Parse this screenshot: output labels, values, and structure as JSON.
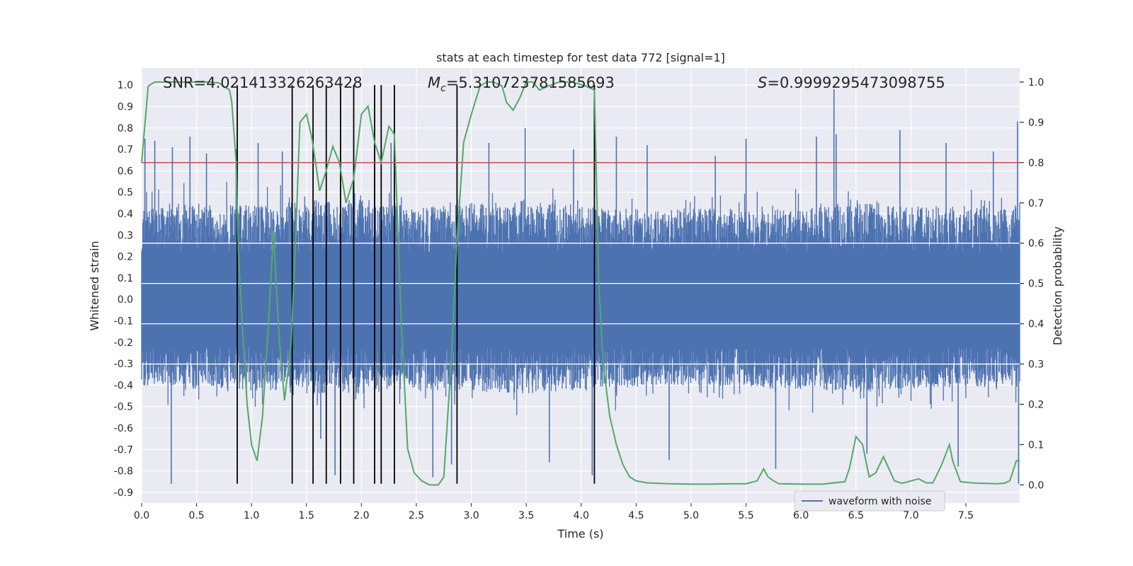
{
  "chart_data": {
    "type": "line",
    "title": "stats at each timestep for test data 772 [signal=1]",
    "xlabel": "Time (s)",
    "ylabel_left": "Whitened strain",
    "ylabel_right": "Detection probability",
    "xlim": [
      0.0,
      7.99
    ],
    "ylim_left": [
      -0.95,
      1.08
    ],
    "ylim_right": [
      -0.045,
      1.035
    ],
    "x_ticks": [
      "0.0",
      "0.5",
      "1.0",
      "1.5",
      "2.0",
      "2.5",
      "3.0",
      "3.5",
      "4.0",
      "4.5",
      "5.0",
      "5.5",
      "6.0",
      "6.5",
      "7.0",
      "7.5"
    ],
    "y_ticks_left": [
      "1.0",
      "0.9",
      "0.8",
      "0.7",
      "0.6",
      "0.5",
      "0.4",
      "0.3",
      "0.2",
      "0.1",
      "0.0",
      "-0.1",
      "-0.2",
      "-0.3",
      "-0.4",
      "-0.5",
      "-0.6",
      "-0.7",
      "-0.8",
      "-0.9"
    ],
    "y_ticks_right": [
      "1.0",
      "0.9",
      "0.8",
      "0.7",
      "0.6",
      "0.5",
      "0.4",
      "0.3",
      "0.2",
      "0.1",
      "0.0"
    ],
    "annotations": {
      "snr": "SNR=4.021413326263428",
      "mc_symbol": "M",
      "mc_sub": "c",
      "mc_value": "=5.310723781585693",
      "s_symbol": "S",
      "s_value": "=0.9999295473098755"
    },
    "legend": {
      "entries": [
        "waveform with noise"
      ],
      "placement": "lower-right"
    },
    "grid": true,
    "colors": {
      "background": "#eaeaf2",
      "grid": "#ffffff",
      "waveform": "#4c72b0",
      "probability": "#55a868",
      "threshold": "#c44e52",
      "markers": "#000000"
    },
    "threshold_probability": 0.8,
    "event_markers_x": [
      0.87,
      1.37,
      1.56,
      1.68,
      1.81,
      1.93,
      2.12,
      2.18,
      2.3,
      2.87,
      4.12
    ],
    "event_markers_ymin": -0.86,
    "event_markers_ymax": 1.0,
    "waveform_envelope": {
      "x": [
        0.0,
        0.5,
        1.0,
        1.5,
        2.0,
        2.5,
        3.0,
        3.5,
        4.0,
        4.5,
        5.0,
        5.5,
        6.0,
        6.5,
        7.0,
        7.5,
        7.99
      ],
      "upper": [
        0.42,
        0.45,
        0.44,
        0.46,
        0.47,
        0.44,
        0.45,
        0.46,
        0.44,
        0.42,
        0.43,
        0.42,
        0.43,
        0.45,
        0.44,
        0.43,
        0.44
      ],
      "lower": [
        -0.4,
        -0.42,
        -0.43,
        -0.44,
        -0.45,
        -0.42,
        -0.43,
        -0.44,
        -0.42,
        -0.41,
        -0.4,
        -0.41,
        -0.42,
        -0.43,
        -0.42,
        -0.41,
        -0.42
      ]
    },
    "waveform_spikes": [
      {
        "x": 0.03,
        "y": 0.75
      },
      {
        "x": 0.12,
        "y": 0.74
      },
      {
        "x": 0.27,
        "y": -0.86
      },
      {
        "x": 0.28,
        "y": 0.71
      },
      {
        "x": 0.44,
        "y": 0.76
      },
      {
        "x": 0.59,
        "y": 0.68
      },
      {
        "x": 0.86,
        "y": 0.7
      },
      {
        "x": 1.06,
        "y": 0.73
      },
      {
        "x": 1.28,
        "y": 0.69
      },
      {
        "x": 1.63,
        "y": -0.65
      },
      {
        "x": 1.76,
        "y": -0.82
      },
      {
        "x": 2.12,
        "y": 0.76
      },
      {
        "x": 2.27,
        "y": 0.73
      },
      {
        "x": 2.65,
        "y": -0.83
      },
      {
        "x": 2.82,
        "y": -0.77
      },
      {
        "x": 3.16,
        "y": 0.73
      },
      {
        "x": 3.49,
        "y": 0.8
      },
      {
        "x": 3.71,
        "y": -0.76
      },
      {
        "x": 3.93,
        "y": 0.7
      },
      {
        "x": 4.1,
        "y": -0.82
      },
      {
        "x": 4.32,
        "y": 0.76
      },
      {
        "x": 4.6,
        "y": 0.72
      },
      {
        "x": 4.8,
        "y": -0.75
      },
      {
        "x": 5.22,
        "y": 0.67
      },
      {
        "x": 5.5,
        "y": 0.75
      },
      {
        "x": 5.77,
        "y": -0.79
      },
      {
        "x": 6.14,
        "y": 0.76
      },
      {
        "x": 6.3,
        "y": 0.98
      },
      {
        "x": 6.32,
        "y": 0.77
      },
      {
        "x": 6.6,
        "y": -0.72
      },
      {
        "x": 6.9,
        "y": 0.79
      },
      {
        "x": 7.32,
        "y": 0.73
      },
      {
        "x": 7.43,
        "y": -0.78
      },
      {
        "x": 7.75,
        "y": 0.69
      },
      {
        "x": 7.97,
        "y": 0.83
      },
      {
        "x": 7.98,
        "y": -0.86
      }
    ],
    "probability_series": {
      "name": "",
      "x": [
        0.0,
        0.06,
        0.12,
        0.2,
        0.4,
        0.6,
        0.7,
        0.8,
        0.82,
        0.86,
        0.88,
        0.92,
        0.96,
        1.0,
        1.05,
        1.1,
        1.15,
        1.2,
        1.25,
        1.3,
        1.36,
        1.4,
        1.44,
        1.5,
        1.55,
        1.62,
        1.68,
        1.74,
        1.8,
        1.86,
        1.93,
        2.0,
        2.06,
        2.12,
        2.18,
        2.25,
        2.3,
        2.36,
        2.42,
        2.48,
        2.55,
        2.62,
        2.7,
        2.75,
        2.82,
        2.87,
        2.93,
        3.0,
        3.08,
        3.14,
        3.2,
        3.28,
        3.32,
        3.38,
        3.44,
        3.5,
        3.56,
        3.62,
        3.7,
        3.8,
        3.92,
        4.04,
        4.12,
        4.16,
        4.2,
        4.26,
        4.32,
        4.38,
        4.44,
        4.5,
        4.6,
        4.8,
        5.0,
        5.2,
        5.4,
        5.5,
        5.6,
        5.66,
        5.7,
        5.75,
        5.8,
        6.0,
        6.2,
        6.4,
        6.44,
        6.5,
        6.56,
        6.62,
        6.68,
        6.75,
        6.85,
        6.92,
        7.0,
        7.07,
        7.14,
        7.2,
        7.28,
        7.35,
        7.38,
        7.45,
        7.55,
        7.65,
        7.78,
        7.85,
        7.9,
        7.96,
        7.99
      ],
      "y": [
        0.8,
        0.99,
        1.0,
        1.0,
        1.0,
        1.0,
        0.998,
        0.98,
        0.95,
        0.8,
        0.58,
        0.38,
        0.2,
        0.1,
        0.06,
        0.17,
        0.38,
        0.63,
        0.37,
        0.21,
        0.35,
        0.6,
        0.9,
        0.92,
        0.86,
        0.73,
        0.78,
        0.84,
        0.8,
        0.7,
        0.76,
        0.92,
        0.94,
        0.85,
        0.8,
        0.89,
        0.87,
        0.42,
        0.09,
        0.03,
        0.01,
        0.0,
        0.0,
        0.02,
        0.32,
        0.61,
        0.85,
        0.92,
        0.99,
        1.0,
        1.0,
        0.99,
        0.95,
        0.93,
        0.96,
        1.0,
        1.0,
        0.98,
        0.99,
        1.0,
        1.0,
        0.99,
        0.98,
        0.5,
        0.3,
        0.17,
        0.1,
        0.05,
        0.02,
        0.01,
        0.005,
        0.003,
        0.002,
        0.002,
        0.003,
        0.003,
        0.01,
        0.04,
        0.02,
        0.01,
        0.003,
        0.002,
        0.002,
        0.008,
        0.04,
        0.12,
        0.1,
        0.02,
        0.03,
        0.07,
        0.01,
        0.004,
        0.01,
        0.015,
        0.005,
        0.005,
        0.05,
        0.1,
        0.06,
        0.008,
        0.005,
        0.004,
        0.003,
        0.004,
        0.01,
        0.06,
        0.06
      ]
    }
  }
}
